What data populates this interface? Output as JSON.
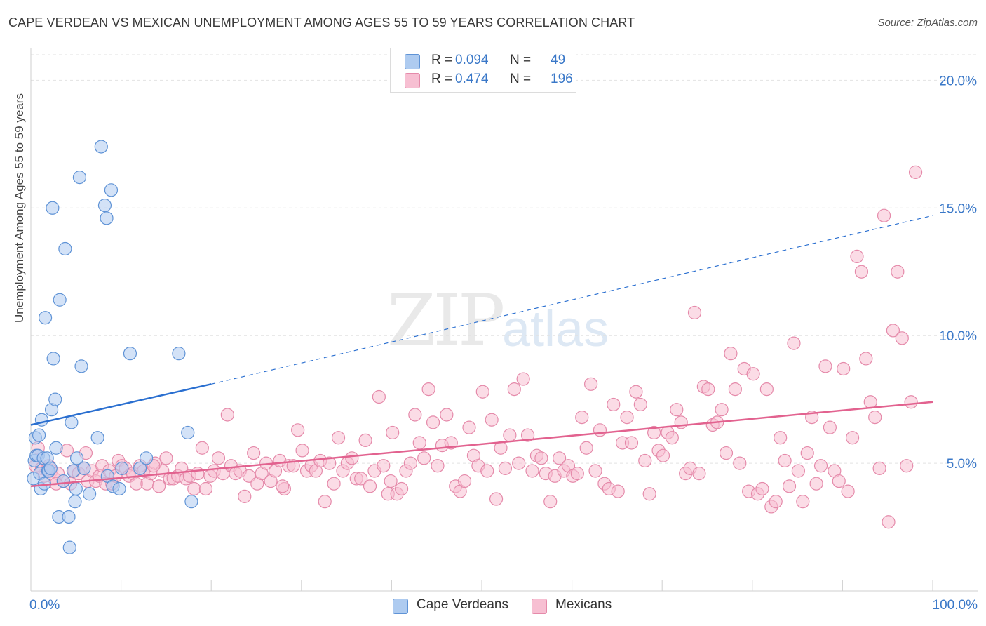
{
  "header": {
    "title": "CAPE VERDEAN VS MEXICAN UNEMPLOYMENT AMONG AGES 55 TO 59 YEARS CORRELATION CHART",
    "source": "Source: ZipAtlas.com"
  },
  "watermark": {
    "zip": "ZIP",
    "atlas": "atlas"
  },
  "legend_top": {
    "rows": [
      {
        "r_label": "R =",
        "r_value": "0.094",
        "n_label": "N =",
        "n_value": "49",
        "color": "#aecbf0"
      },
      {
        "r_label": "R =",
        "r_value": "0.474",
        "n_label": "N =",
        "n_value": "196",
        "color": "#f7bfd2"
      }
    ]
  },
  "legend_bottom": [
    {
      "label": "Cape Verdeans",
      "color": "#aecbf0"
    },
    {
      "label": "Mexicans",
      "color": "#f7bfd2"
    }
  ],
  "colors": {
    "blue_fill": "#aecbf0",
    "blue_stroke": "#5f93d6",
    "blue_line": "#2a6fd0",
    "pink_fill": "#f7bfd2",
    "pink_stroke": "#e58aaa",
    "pink_line": "#e2628f",
    "tick_text": "#3a78c8",
    "grid": "#e2e2e2"
  },
  "chart_data": {
    "type": "scatter",
    "title": "CAPE VERDEAN VS MEXICAN UNEMPLOYMENT AMONG AGES 55 TO 59 YEARS CORRELATION CHART",
    "xlabel": "",
    "ylabel": "Unemployment Among Ages 55 to 59 years",
    "xlim": [
      0,
      100
    ],
    "ylim": [
      0,
      21
    ],
    "x_tick_labels": [
      "0.0%",
      "100.0%"
    ],
    "y_ticks": [
      5,
      10,
      15,
      20
    ],
    "y_tick_labels": [
      "5.0%",
      "10.0%",
      "15.0%",
      "20.0%"
    ],
    "grid": true,
    "series": [
      {
        "name": "Cape Verdeans",
        "r": 0.094,
        "n": 49,
        "trend": {
          "x0": 0,
          "y0": 6.5,
          "x1": 20,
          "y1": 8.1,
          "dashed_to_x": 100,
          "dashed_to_y": 14.7
        },
        "points": [
          [
            0.3,
            4.4
          ],
          [
            0.4,
            5.1
          ],
          [
            0.5,
            6.0
          ],
          [
            0.6,
            5.3
          ],
          [
            0.8,
            5.3
          ],
          [
            0.9,
            6.1
          ],
          [
            1.0,
            4.6
          ],
          [
            1.1,
            4.0
          ],
          [
            1.2,
            6.7
          ],
          [
            1.4,
            5.2
          ],
          [
            1.5,
            4.2
          ],
          [
            1.6,
            10.7
          ],
          [
            1.8,
            5.2
          ],
          [
            1.9,
            4.7
          ],
          [
            2.0,
            4.7
          ],
          [
            2.2,
            4.8
          ],
          [
            2.3,
            7.1
          ],
          [
            2.4,
            15.0
          ],
          [
            2.5,
            9.1
          ],
          [
            2.7,
            7.5
          ],
          [
            2.8,
            5.6
          ],
          [
            3.1,
            2.9
          ],
          [
            3.2,
            11.4
          ],
          [
            3.6,
            4.3
          ],
          [
            3.8,
            13.4
          ],
          [
            4.2,
            2.9
          ],
          [
            4.3,
            1.7
          ],
          [
            4.5,
            6.6
          ],
          [
            4.7,
            4.7
          ],
          [
            4.9,
            3.5
          ],
          [
            5.0,
            4.0
          ],
          [
            5.1,
            5.2
          ],
          [
            5.4,
            16.2
          ],
          [
            5.6,
            8.8
          ],
          [
            5.9,
            4.8
          ],
          [
            6.5,
            3.8
          ],
          [
            7.4,
            6.0
          ],
          [
            7.8,
            17.4
          ],
          [
            8.2,
            15.1
          ],
          [
            8.4,
            14.6
          ],
          [
            8.5,
            4.5
          ],
          [
            8.9,
            15.7
          ],
          [
            9.1,
            4.1
          ],
          [
            9.8,
            4.0
          ],
          [
            10.1,
            4.8
          ],
          [
            11.0,
            9.3
          ],
          [
            12.1,
            4.8
          ],
          [
            12.8,
            5.2
          ],
          [
            16.4,
            9.3
          ],
          [
            17.4,
            6.2
          ],
          [
            17.8,
            3.5
          ]
        ]
      },
      {
        "name": "Mexicans",
        "r": 0.474,
        "n": 196,
        "trend": {
          "x0": 0,
          "y0": 4.1,
          "x1": 100,
          "y1": 7.4
        },
        "points": [
          [
            0.5,
            4.9
          ],
          [
            0.8,
            5.6
          ],
          [
            1.2,
            4.8
          ],
          [
            1.5,
            4.5
          ],
          [
            2.0,
            4.9
          ],
          [
            2.3,
            4.7
          ],
          [
            2.6,
            4.4
          ],
          [
            3.0,
            4.6
          ],
          [
            3.6,
            4.3
          ],
          [
            4.0,
            5.5
          ],
          [
            4.4,
            4.2
          ],
          [
            4.8,
            4.7
          ],
          [
            5.3,
            4.6
          ],
          [
            5.9,
            4.8
          ],
          [
            6.3,
            4.3
          ],
          [
            6.8,
            4.7
          ],
          [
            7.2,
            4.3
          ],
          [
            7.6,
            4.5
          ],
          [
            7.9,
            4.9
          ],
          [
            8.3,
            4.2
          ],
          [
            8.7,
            4.7
          ],
          [
            9.0,
            4.2
          ],
          [
            9.4,
            4.5
          ],
          [
            9.7,
            5.1
          ],
          [
            10.1,
            4.9
          ],
          [
            10.5,
            4.8
          ],
          [
            10.9,
            4.5
          ],
          [
            11.3,
            4.6
          ],
          [
            11.7,
            4.2
          ],
          [
            12.1,
            4.9
          ],
          [
            12.5,
            4.7
          ],
          [
            12.9,
            4.2
          ],
          [
            13.3,
            4.6
          ],
          [
            13.8,
            5.0
          ],
          [
            14.2,
            4.1
          ],
          [
            14.6,
            4.7
          ],
          [
            15.0,
            5.2
          ],
          [
            15.4,
            4.4
          ],
          [
            15.8,
            4.4
          ],
          [
            16.3,
            4.5
          ],
          [
            16.7,
            4.8
          ],
          [
            17.2,
            4.4
          ],
          [
            17.6,
            4.5
          ],
          [
            18.1,
            4.0
          ],
          [
            18.5,
            4.6
          ],
          [
            19.0,
            5.6
          ],
          [
            19.4,
            4.0
          ],
          [
            19.9,
            4.5
          ],
          [
            20.3,
            4.7
          ],
          [
            20.8,
            5.2
          ],
          [
            21.3,
            4.6
          ],
          [
            21.8,
            6.9
          ],
          [
            22.2,
            4.9
          ],
          [
            22.7,
            4.6
          ],
          [
            23.2,
            4.7
          ],
          [
            23.7,
            3.7
          ],
          [
            24.2,
            4.5
          ],
          [
            24.7,
            5.4
          ],
          [
            25.1,
            4.2
          ],
          [
            25.6,
            4.6
          ],
          [
            26.1,
            5.0
          ],
          [
            26.6,
            4.3
          ],
          [
            27.1,
            4.7
          ],
          [
            27.6,
            5.1
          ],
          [
            28.1,
            4.0
          ],
          [
            28.6,
            4.9
          ],
          [
            29.1,
            4.9
          ],
          [
            29.6,
            6.3
          ],
          [
            30.1,
            5.5
          ],
          [
            30.6,
            4.7
          ],
          [
            31.1,
            4.9
          ],
          [
            31.6,
            4.7
          ],
          [
            32.1,
            5.1
          ],
          [
            32.6,
            3.5
          ],
          [
            33.1,
            5.0
          ],
          [
            33.6,
            4.2
          ],
          [
            34.1,
            6.0
          ],
          [
            34.6,
            4.7
          ],
          [
            35.1,
            5.0
          ],
          [
            35.6,
            5.2
          ],
          [
            36.1,
            4.4
          ],
          [
            36.6,
            4.4
          ],
          [
            37.1,
            5.9
          ],
          [
            37.6,
            4.1
          ],
          [
            38.1,
            4.7
          ],
          [
            38.6,
            7.6
          ],
          [
            39.1,
            4.9
          ],
          [
            39.6,
            3.8
          ],
          [
            40.1,
            6.2
          ],
          [
            40.6,
            3.8
          ],
          [
            41.1,
            4.0
          ],
          [
            41.6,
            4.7
          ],
          [
            42.1,
            5.0
          ],
          [
            42.6,
            6.9
          ],
          [
            43.1,
            5.8
          ],
          [
            43.6,
            5.2
          ],
          [
            44.1,
            7.9
          ],
          [
            44.6,
            6.6
          ],
          [
            45.1,
            4.9
          ],
          [
            45.6,
            5.7
          ],
          [
            46.1,
            6.9
          ],
          [
            46.6,
            5.8
          ],
          [
            47.1,
            4.1
          ],
          [
            47.6,
            3.9
          ],
          [
            48.1,
            4.3
          ],
          [
            48.6,
            6.4
          ],
          [
            49.1,
            5.3
          ],
          [
            49.6,
            4.9
          ],
          [
            50.1,
            7.8
          ],
          [
            50.6,
            4.7
          ],
          [
            51.1,
            6.7
          ],
          [
            51.6,
            3.6
          ],
          [
            52.1,
            5.6
          ],
          [
            52.6,
            4.8
          ],
          [
            53.1,
            6.1
          ],
          [
            53.6,
            7.9
          ],
          [
            54.1,
            5.0
          ],
          [
            54.6,
            8.3
          ],
          [
            55.1,
            6.1
          ],
          [
            55.6,
            4.7
          ],
          [
            56.1,
            5.3
          ],
          [
            56.6,
            5.2
          ],
          [
            57.1,
            4.6
          ],
          [
            57.6,
            3.5
          ],
          [
            58.1,
            4.5
          ],
          [
            58.6,
            5.2
          ],
          [
            59.1,
            4.7
          ],
          [
            59.6,
            4.9
          ],
          [
            60.1,
            4.5
          ],
          [
            60.6,
            4.6
          ],
          [
            61.1,
            6.8
          ],
          [
            61.6,
            5.6
          ],
          [
            62.1,
            8.1
          ],
          [
            62.6,
            4.7
          ],
          [
            63.1,
            6.3
          ],
          [
            63.6,
            4.2
          ],
          [
            64.1,
            4.0
          ],
          [
            64.6,
            7.3
          ],
          [
            65.1,
            3.9
          ],
          [
            65.6,
            5.8
          ],
          [
            66.1,
            6.8
          ],
          [
            66.6,
            5.8
          ],
          [
            67.1,
            7.8
          ],
          [
            67.6,
            7.3
          ],
          [
            68.1,
            5.1
          ],
          [
            68.6,
            3.8
          ],
          [
            69.1,
            6.2
          ],
          [
            69.6,
            5.5
          ],
          [
            70.1,
            5.3
          ],
          [
            70.6,
            6.2
          ],
          [
            71.1,
            6.0
          ],
          [
            71.6,
            7.1
          ],
          [
            72.1,
            6.6
          ],
          [
            72.6,
            4.6
          ],
          [
            73.1,
            4.8
          ],
          [
            73.6,
            10.9
          ],
          [
            74.1,
            4.6
          ],
          [
            74.6,
            8.0
          ],
          [
            75.1,
            7.9
          ],
          [
            75.6,
            6.5
          ],
          [
            76.1,
            6.6
          ],
          [
            76.6,
            7.1
          ],
          [
            77.1,
            5.4
          ],
          [
            77.6,
            9.3
          ],
          [
            78.1,
            7.9
          ],
          [
            78.6,
            5.0
          ],
          [
            79.1,
            8.7
          ],
          [
            79.6,
            3.9
          ],
          [
            80.1,
            8.5
          ],
          [
            80.6,
            3.8
          ],
          [
            81.1,
            4.0
          ],
          [
            81.6,
            7.9
          ],
          [
            82.1,
            3.3
          ],
          [
            82.6,
            3.5
          ],
          [
            83.1,
            6.0
          ],
          [
            83.6,
            5.1
          ],
          [
            84.1,
            4.1
          ],
          [
            84.6,
            9.7
          ],
          [
            85.1,
            4.7
          ],
          [
            85.6,
            3.5
          ],
          [
            86.1,
            5.4
          ],
          [
            86.6,
            6.8
          ],
          [
            87.1,
            4.2
          ],
          [
            87.6,
            4.9
          ],
          [
            88.1,
            8.8
          ],
          [
            88.6,
            6.4
          ],
          [
            89.1,
            4.7
          ],
          [
            89.6,
            4.3
          ],
          [
            90.1,
            8.7
          ],
          [
            90.6,
            3.9
          ],
          [
            91.1,
            6.0
          ],
          [
            91.6,
            13.1
          ],
          [
            92.1,
            12.5
          ],
          [
            92.6,
            9.1
          ],
          [
            93.1,
            7.4
          ],
          [
            93.6,
            6.8
          ],
          [
            94.1,
            4.8
          ],
          [
            94.6,
            14.7
          ],
          [
            95.1,
            2.7
          ],
          [
            95.6,
            10.2
          ],
          [
            96.1,
            12.5
          ],
          [
            96.6,
            9.9
          ],
          [
            97.1,
            4.9
          ],
          [
            97.6,
            7.4
          ],
          [
            98.1,
            16.4
          ],
          [
            2.8,
            4.2
          ],
          [
            6.1,
            5.4
          ],
          [
            13.6,
            4.9
          ],
          [
            27.9,
            4.1
          ],
          [
            39.9,
            4.3
          ]
        ]
      }
    ]
  }
}
